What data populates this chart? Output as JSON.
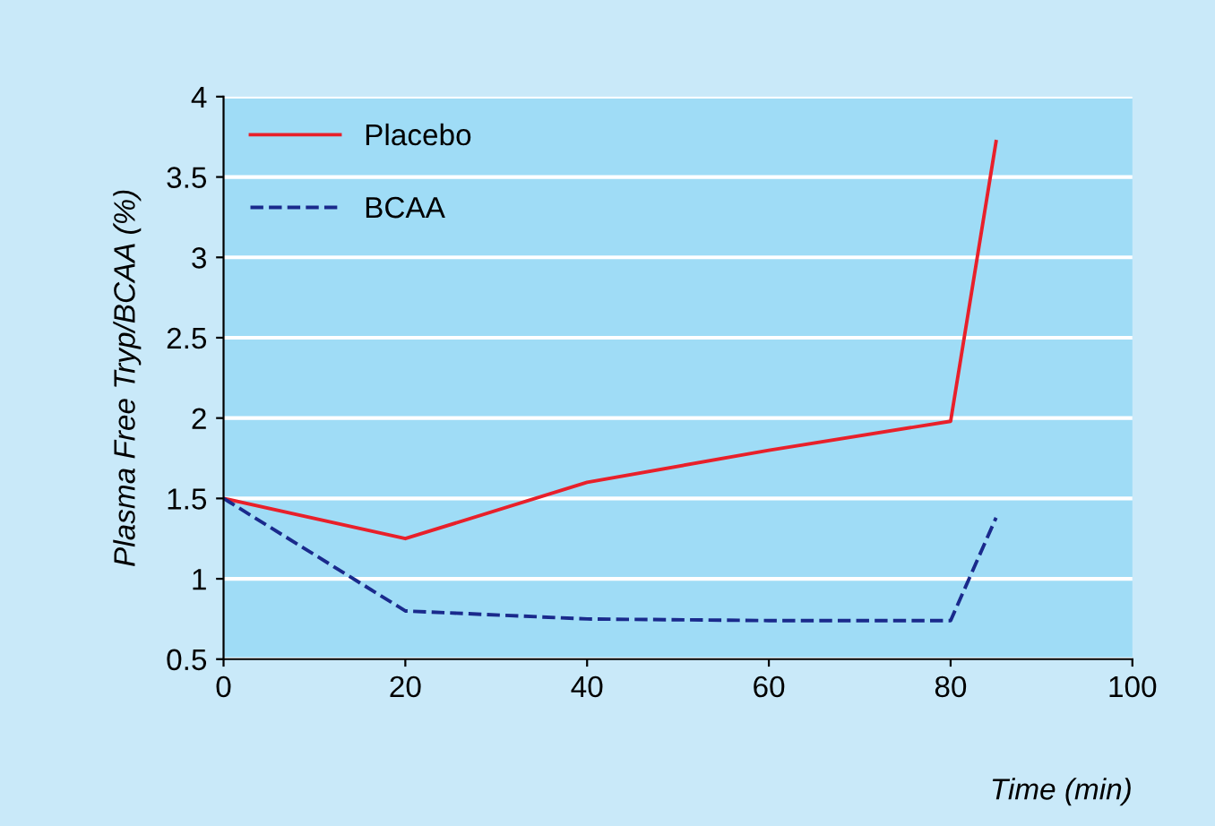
{
  "chart_data": {
    "type": "line",
    "xlabel": "Time (min)",
    "ylabel": "Plasma Free Tryp/BCAA (%)",
    "x": [
      0,
      20,
      40,
      60,
      80,
      85
    ],
    "series": [
      {
        "name": "Placebo",
        "color": "#e8202a",
        "values": [
          1.5,
          1.25,
          1.6,
          1.8,
          1.98,
          3.72
        ],
        "line_style": "solid"
      },
      {
        "name": "BCAA",
        "color": "#1a2a8c",
        "values": [
          1.5,
          0.8,
          0.75,
          0.74,
          0.74,
          1.38
        ],
        "line_style": "dashed"
      }
    ],
    "xlim": [
      0,
      100
    ],
    "xticks": [
      0,
      20,
      40,
      60,
      80,
      100
    ],
    "ylim": [
      0.5,
      4
    ],
    "yticks": [
      0.5,
      1,
      1.5,
      2,
      2.5,
      3,
      3.5,
      4
    ],
    "grid": "y",
    "legend": "top left"
  }
}
